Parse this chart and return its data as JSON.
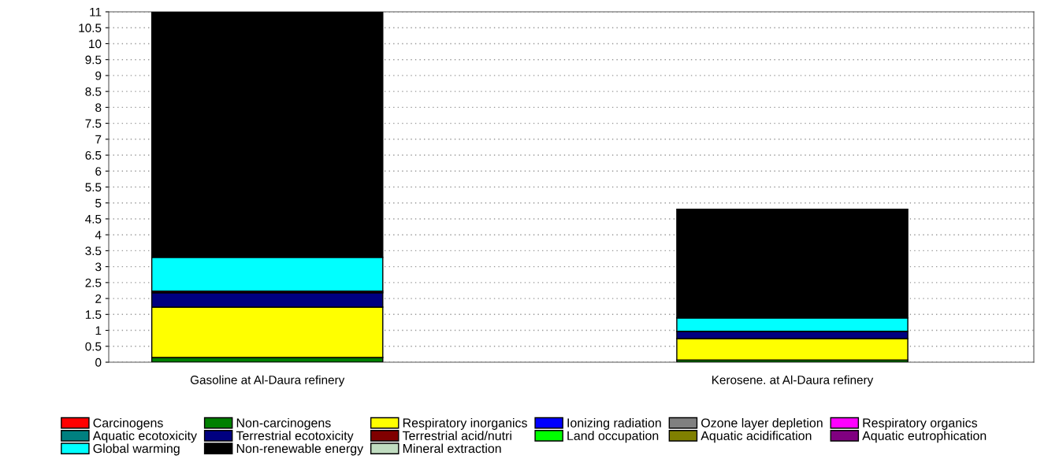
{
  "chart_data": {
    "type": "bar",
    "stacked": true,
    "categories": [
      "Gasoline at Al-Daura refinery",
      "Kerosene. at Al-Daura refinery"
    ],
    "series": [
      {
        "name": "Carcinogens",
        "color": "#ff0000",
        "values": [
          null,
          null
        ]
      },
      {
        "name": "Non-carcinogens",
        "color": "#008000",
        "values": [
          0.15,
          0.07
        ]
      },
      {
        "name": "Respiratory inorganics",
        "color": "#ffff00",
        "values": [
          1.58,
          0.67
        ]
      },
      {
        "name": "Ionizing radiation",
        "color": "#0000ff",
        "values": [
          null,
          null
        ]
      },
      {
        "name": "Ozone layer depletion",
        "color": "#808080",
        "values": [
          null,
          null
        ]
      },
      {
        "name": "Respiratory organics",
        "color": "#ff00ff",
        "values": [
          null,
          null
        ]
      },
      {
        "name": "Aquatic ecotoxicity",
        "color": "#008080",
        "values": [
          null,
          null
        ]
      },
      {
        "name": "Terrestrial ecotoxicity",
        "color": "#000080",
        "values": [
          0.45,
          0.23
        ]
      },
      {
        "name": "Terrestrial acid/nutri",
        "color": "#800000",
        "values": [
          0.05,
          null
        ]
      },
      {
        "name": "Land occupation",
        "color": "#00ff00",
        "values": [
          null,
          null
        ]
      },
      {
        "name": "Aquatic acidification",
        "color": "#808000",
        "values": [
          null,
          null
        ]
      },
      {
        "name": "Aquatic eutrophication",
        "color": "#800080",
        "values": [
          null,
          null
        ]
      },
      {
        "name": "Global warming",
        "color": "#00ffff",
        "values": [
          1.06,
          0.42
        ]
      },
      {
        "name": "Non-renewable energy",
        "color": "#000000",
        "values": [
          7.71,
          3.41
        ]
      },
      {
        "name": "Mineral extraction",
        "color": "#c0dcc0",
        "values": [
          null,
          null
        ]
      }
    ],
    "ylim": [
      0,
      11
    ],
    "yticks": [
      0,
      0.5,
      1,
      1.5,
      2,
      2.5,
      3,
      3.5,
      4,
      4.5,
      5,
      5.5,
      6,
      6.5,
      7,
      7.5,
      8,
      8.5,
      9,
      9.5,
      10,
      10.5,
      11
    ],
    "grid": "y",
    "legend": "bottom"
  }
}
